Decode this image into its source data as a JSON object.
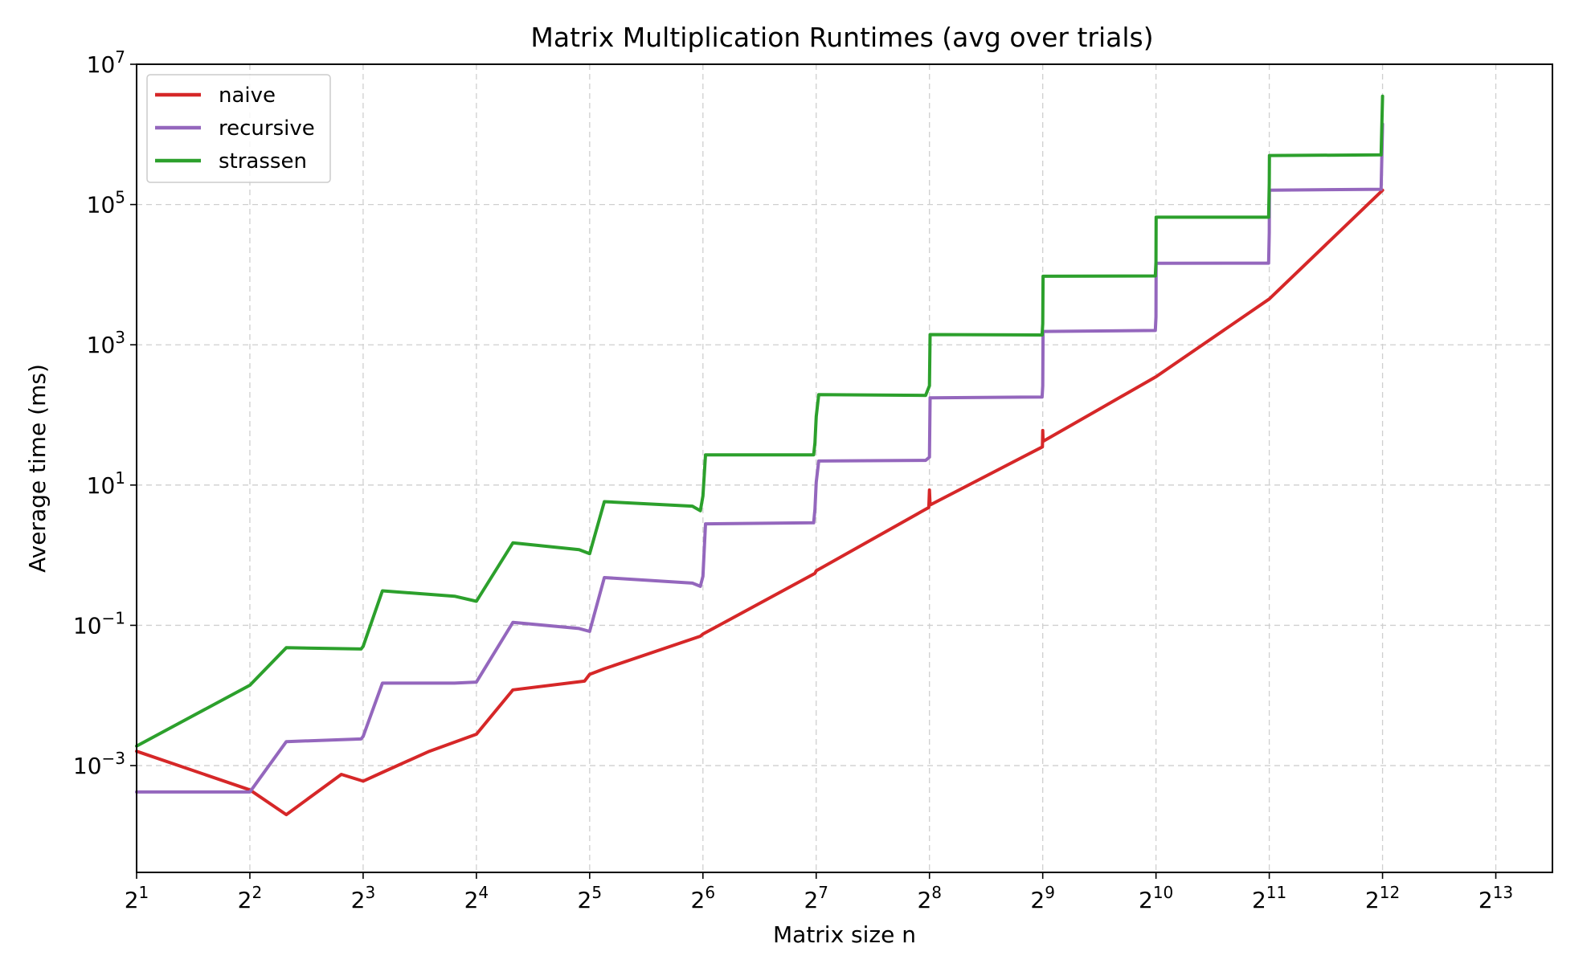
{
  "chart_data": {
    "type": "line",
    "title": "Matrix Multiplication Runtimes (avg over trials)",
    "xlabel": "Matrix size n",
    "ylabel": "Average time (ms)",
    "x_scale": "log2",
    "y_scale": "log10",
    "xlim": [
      2,
      11585
    ],
    "ylim": [
      3e-05,
      10000000
    ],
    "grid": true,
    "legend_position": "top-left",
    "x_ticks": [
      {
        "value": 2,
        "base": "2",
        "exp": "1"
      },
      {
        "value": 4,
        "base": "2",
        "exp": "2"
      },
      {
        "value": 8,
        "base": "2",
        "exp": "3"
      },
      {
        "value": 16,
        "base": "2",
        "exp": "4"
      },
      {
        "value": 32,
        "base": "2",
        "exp": "5"
      },
      {
        "value": 64,
        "base": "2",
        "exp": "6"
      },
      {
        "value": 128,
        "base": "2",
        "exp": "7"
      },
      {
        "value": 256,
        "base": "2",
        "exp": "8"
      },
      {
        "value": 512,
        "base": "2",
        "exp": "9"
      },
      {
        "value": 1024,
        "base": "2",
        "exp": "10"
      },
      {
        "value": 2048,
        "base": "2",
        "exp": "11"
      },
      {
        "value": 4096,
        "base": "2",
        "exp": "12"
      },
      {
        "value": 8192,
        "base": "2",
        "exp": "13"
      }
    ],
    "y_ticks": [
      {
        "value": 0.001,
        "base": "10",
        "exp": "−3"
      },
      {
        "value": 0.1,
        "base": "10",
        "exp": "−1"
      },
      {
        "value": 10,
        "base": "10",
        "exp": "1"
      },
      {
        "value": 1000,
        "base": "10",
        "exp": "3"
      },
      {
        "value": 100000,
        "base": "10",
        "exp": "5"
      },
      {
        "value": 10000000,
        "base": "10",
        "exp": "7"
      }
    ],
    "series": [
      {
        "name": "naive",
        "color": "#d62728",
        "x": [
          2,
          4,
          5,
          7,
          8,
          9,
          12,
          16,
          20,
          31,
          32,
          35,
          63,
          64,
          127,
          128,
          255,
          256,
          257,
          511,
          512,
          513,
          1024,
          2048,
          4096
        ],
        "y": [
          0.0016,
          0.00045,
          0.0002,
          0.00075,
          0.0006,
          0.0008,
          0.0016,
          0.0028,
          0.012,
          0.016,
          0.02,
          0.024,
          0.07,
          0.075,
          0.55,
          0.6,
          4.8,
          8.5,
          5.2,
          35,
          60,
          42,
          350,
          4500,
          160000
        ]
      },
      {
        "name": "recursive",
        "color": "#9467bd",
        "x": [
          2,
          4,
          5,
          7.9,
          8,
          9,
          14,
          16,
          20,
          30,
          32,
          35,
          60,
          63,
          64,
          65,
          126,
          127,
          128,
          130,
          250,
          256,
          257,
          510,
          512,
          513,
          1020,
          1024,
          1025,
          2040,
          2048,
          2050,
          4060,
          4096
        ],
        "y": [
          0.00042,
          0.00042,
          0.0022,
          0.0024,
          0.0026,
          0.015,
          0.015,
          0.0155,
          0.11,
          0.09,
          0.082,
          0.48,
          0.4,
          0.36,
          0.5,
          2.8,
          2.9,
          4.5,
          11,
          22,
          22.5,
          25,
          175,
          180,
          260,
          1550,
          1600,
          2500,
          14500,
          14600,
          40000,
          160000,
          165000,
          1400000
        ]
      },
      {
        "name": "strassen",
        "color": "#2ca02c",
        "x": [
          2,
          4,
          5,
          7.9,
          8,
          9,
          14,
          16,
          20,
          30,
          32,
          35,
          60,
          63,
          64,
          65,
          126,
          127,
          128,
          130,
          250,
          256,
          257,
          510,
          512,
          513,
          1020,
          1024,
          1025,
          2040,
          2048,
          2050,
          4060,
          4096
        ],
        "y": [
          0.0019,
          0.014,
          0.048,
          0.046,
          0.05,
          0.31,
          0.26,
          0.22,
          1.5,
          1.2,
          1.05,
          5.8,
          5,
          4.3,
          7,
          27,
          27,
          40,
          95,
          195,
          190,
          260,
          1400,
          1380,
          2000,
          9500,
          9600,
          15000,
          66000,
          66000,
          200000,
          500000,
          510000,
          3500000
        ]
      }
    ]
  }
}
